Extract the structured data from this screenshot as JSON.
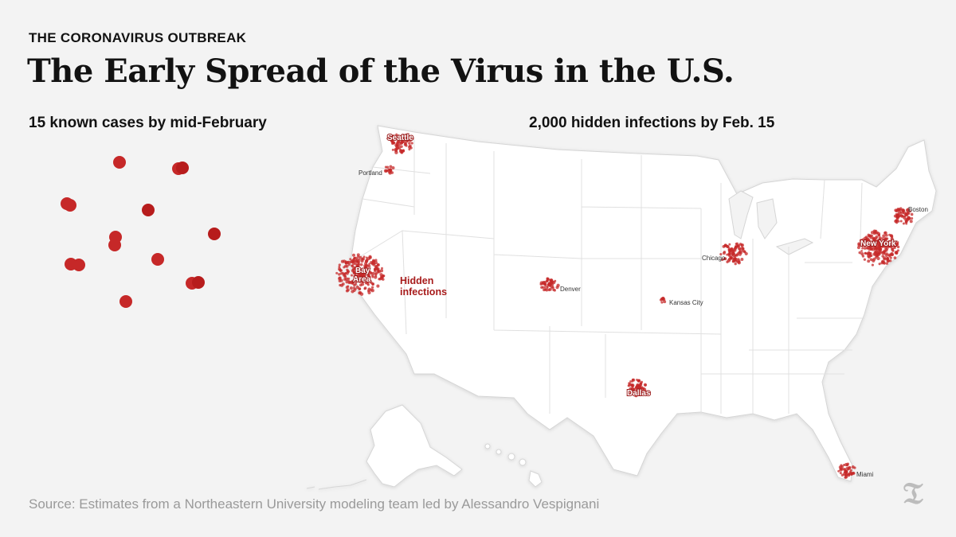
{
  "header": {
    "kicker": "THE CORONAVIRUS OUTBREAK",
    "headline": "The Early Spread of the Virus in the U.S."
  },
  "panels": {
    "left_title": "15 known cases by mid-February",
    "right_title": "2,000 hidden infections by Feb. 15"
  },
  "annotation": {
    "line1": "Hidden",
    "line2": "infections"
  },
  "cities": {
    "seattle": "Seattle",
    "portland": "Portland",
    "bay_area_1": "Bay",
    "bay_area_2": "Area",
    "denver": "Denver",
    "kansas_city": "Kansas City",
    "dallas": "Dallas",
    "chicago": "Chicago",
    "new_york": "New York",
    "boston": "Boston",
    "miami": "Miami"
  },
  "source": "Source: Estimates from a Northeastern University modeling team led by Alessandro Vespignani",
  "logo": "nyt-t-logo",
  "colors": {
    "background": "#f3f3f3",
    "land": "#ffffff",
    "state_border": "#dcdcdc",
    "dot": "#c62828",
    "annotation": "#a71b1b"
  }
}
